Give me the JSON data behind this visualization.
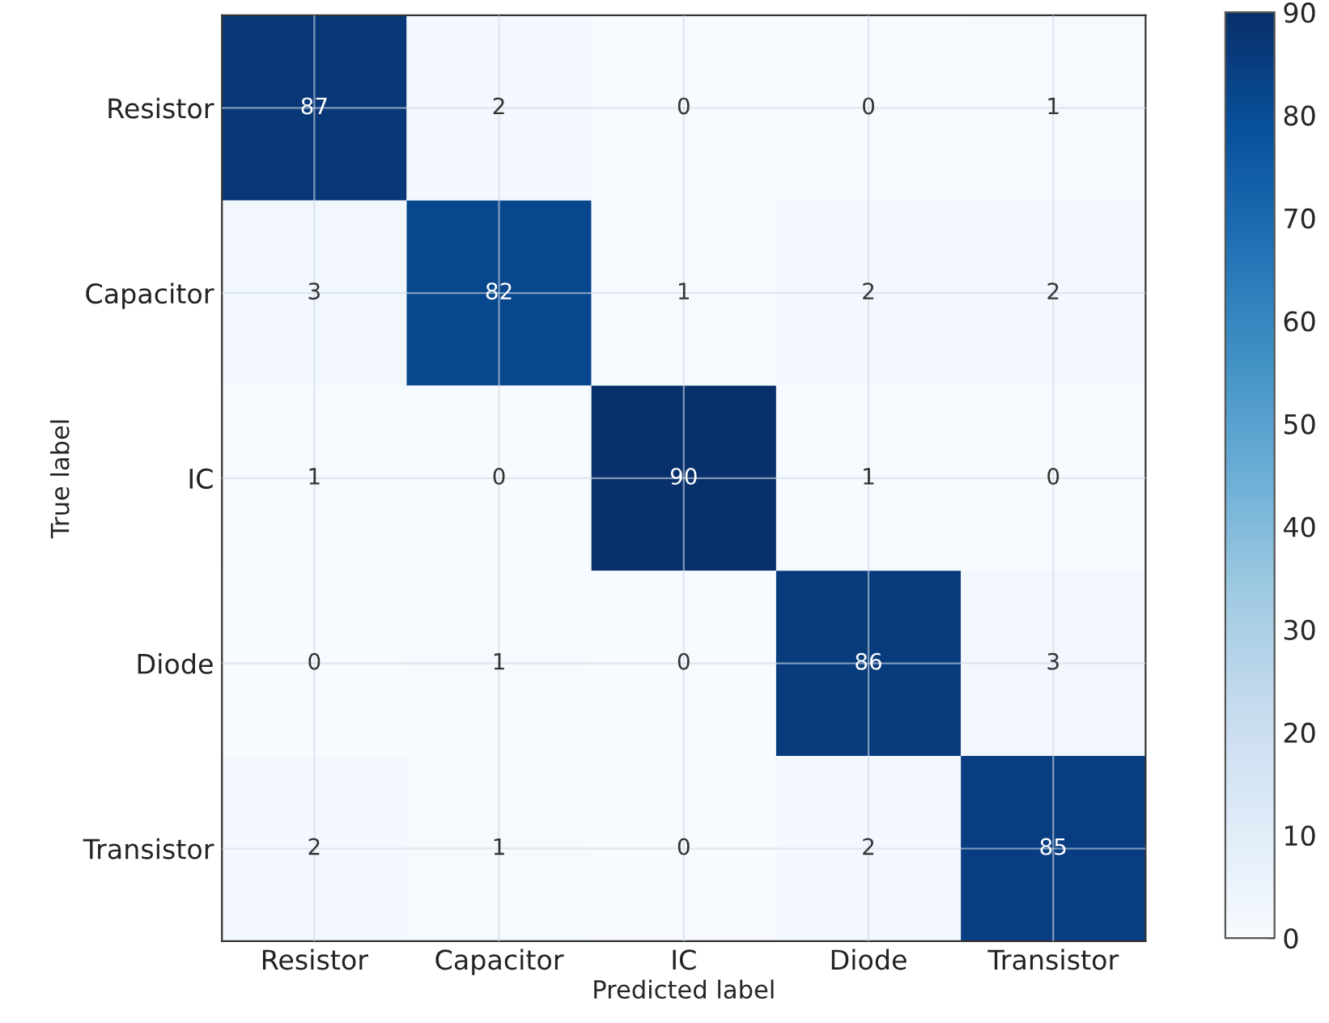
{
  "chart_data": {
    "type": "heatmap",
    "xlabel": "Predicted label",
    "ylabel": "True label",
    "categories": [
      "Resistor",
      "Capacitor",
      "IC",
      "Diode",
      "Transistor"
    ],
    "y_categories": [
      "Resistor",
      "Capacitor",
      "IC",
      "Diode",
      "Transistor"
    ],
    "cells": [
      [
        87,
        2,
        0,
        0,
        1
      ],
      [
        3,
        82,
        1,
        2,
        2
      ],
      [
        1,
        0,
        90,
        1,
        0
      ],
      [
        0,
        1,
        0,
        86,
        3
      ],
      [
        2,
        1,
        0,
        2,
        85
      ]
    ],
    "data_labels": true,
    "clim": [
      0,
      90
    ],
    "cticks": [
      0,
      10,
      20,
      30,
      40,
      50,
      60,
      70,
      80,
      90
    ],
    "grid": true
  }
}
